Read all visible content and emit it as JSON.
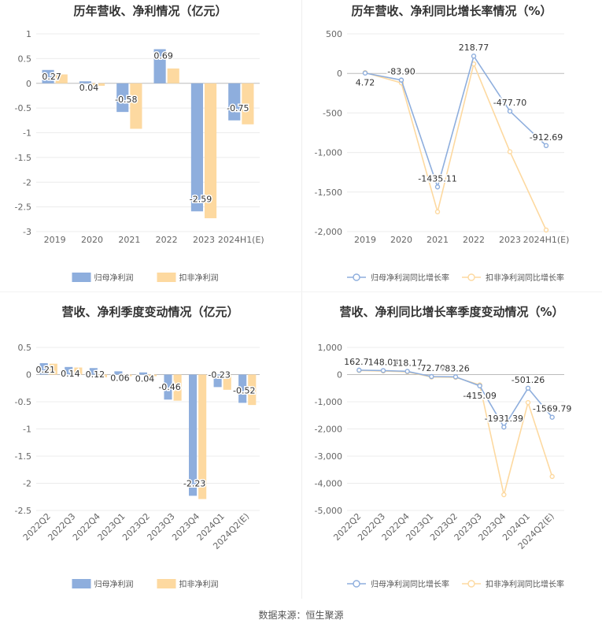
{
  "source": "数据来源：恒生聚源",
  "colors": {
    "blue": "#8eaedd",
    "orange": "#fdd9a0",
    "grid": "#ececec",
    "axis": "#bbbbbb"
  },
  "chart_data": [
    {
      "type": "bar",
      "title": "历年营收、净利情况（亿元）",
      "categories": [
        "2019",
        "2020",
        "2021",
        "2022",
        "2023",
        "2024H1(E)"
      ],
      "series": [
        {
          "name": "归母净利润",
          "values": [
            0.27,
            0.04,
            -0.58,
            0.69,
            -2.59,
            -0.75
          ]
        },
        {
          "name": "扣非净利润",
          "values": [
            0.18,
            -0.05,
            -0.92,
            0.3,
            -2.73,
            -0.83
          ]
        }
      ],
      "data_labels": [
        "0.27",
        "0.04",
        "-0.58",
        "0.69",
        "-2.59",
        "-0.75"
      ],
      "ylim": [
        -3,
        1
      ],
      "yticks": [
        1,
        0.5,
        0,
        -0.5,
        -1,
        -1.5,
        -2,
        -2.5,
        -3
      ],
      "ytick_labels": [
        "1",
        "0.5",
        "0",
        "-0.5",
        "-1",
        "-1.5",
        "-2",
        "-2.5",
        "-3"
      ],
      "legend": "bottom",
      "grid": true
    },
    {
      "type": "line",
      "title": "历年营收、净利同比增长率情况（%）",
      "categories": [
        "2019",
        "2020",
        "2021",
        "2022",
        "2023",
        "2024H1(E)"
      ],
      "series": [
        {
          "name": "归母净利润同比增长率",
          "values": [
            4.72,
            -83.9,
            -1435.11,
            218.77,
            -477.7,
            -912.69
          ]
        },
        {
          "name": "扣非净利润同比增长率",
          "values": [
            10,
            -120,
            -1750,
            120,
            -990,
            -1980
          ]
        }
      ],
      "data_labels": [
        "4.72",
        "-83.90",
        "-1435.11",
        "218.77",
        "-477.70",
        "-912.69"
      ],
      "ylim": [
        -2000,
        500
      ],
      "yticks": [
        500,
        0,
        -500,
        -1000,
        -1500,
        -2000
      ],
      "ytick_labels": [
        "500",
        "0",
        "-500",
        "-1,000",
        "-1,500",
        "-2,000"
      ],
      "legend": "bottom",
      "grid": true
    },
    {
      "type": "bar",
      "title": "营收、净利季度变动情况（亿元）",
      "categories": [
        "2022Q2",
        "2022Q3",
        "2022Q4",
        "2023Q1",
        "2023Q2",
        "2023Q3",
        "2023Q4",
        "2024Q1",
        "2024Q2(E)"
      ],
      "series": [
        {
          "name": "归母净利润",
          "values": [
            0.21,
            0.14,
            0.12,
            0.06,
            0.04,
            -0.46,
            -2.23,
            -0.23,
            -0.52
          ]
        },
        {
          "name": "扣非净利润",
          "values": [
            0.2,
            0.13,
            -0.05,
            -0.03,
            -0.03,
            -0.48,
            -2.29,
            -0.28,
            -0.56
          ]
        }
      ],
      "data_labels": [
        "0.21",
        "0.14",
        "0.12",
        "0.06",
        "0.04",
        "-0.46",
        "-2.23",
        "-0.23",
        "-0.52"
      ],
      "ylim": [
        -2.5,
        0.5
      ],
      "yticks": [
        0.5,
        0,
        -0.5,
        -1,
        -1.5,
        -2,
        -2.5
      ],
      "ytick_labels": [
        "0.5",
        "0",
        "-0.5",
        "-1",
        "-1.5",
        "-2",
        "-2.5"
      ],
      "legend": "bottom",
      "grid": true
    },
    {
      "type": "line",
      "title": "营收、净利同比增长率季度变动情况（%）",
      "categories": [
        "2022Q2",
        "2022Q3",
        "2022Q4",
        "2023Q1",
        "2023Q2",
        "2023Q3",
        "2023Q4",
        "2024Q1",
        "2024Q2(E)"
      ],
      "series": [
        {
          "name": "归母净利润同比增长率",
          "values": [
            162.71,
            148.03,
            118.17,
            -72.7,
            -83.26,
            -415.09,
            -1931.39,
            -501.26,
            -1569.79
          ]
        },
        {
          "name": "扣非净利润同比增长率",
          "values": [
            150,
            130,
            100,
            -90,
            -100,
            -380,
            -4420,
            -1030,
            -3750
          ]
        }
      ],
      "data_labels": [
        "162.71",
        "148.03",
        "118.17",
        "-72.70",
        "-83.26",
        "-415.09",
        "-1931.39",
        "-501.26",
        "-1569.79"
      ],
      "ylim": [
        -5000,
        1000
      ],
      "yticks": [
        1000,
        0,
        -1000,
        -2000,
        -3000,
        -4000,
        -5000
      ],
      "ytick_labels": [
        "1,000",
        "0",
        "-1,000",
        "-2,000",
        "-3,000",
        "-4,000",
        "-5,000"
      ],
      "legend": "bottom",
      "grid": true
    }
  ]
}
